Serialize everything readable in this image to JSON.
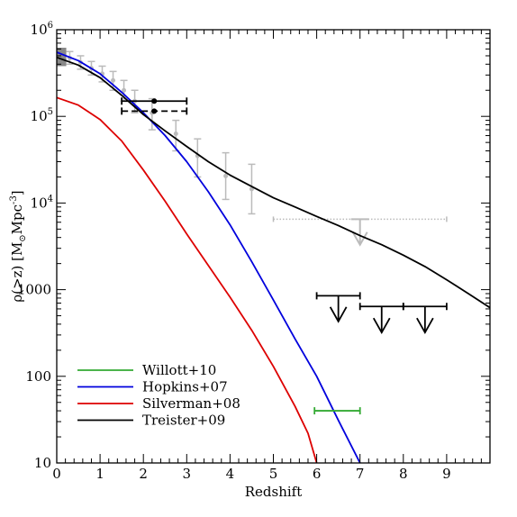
{
  "chart_data": {
    "type": "line",
    "xlabel": "Redshift",
    "ylabel": {
      "prefix": "ρ(>z)  [M",
      "sun_symbol": "⊙",
      "middle": "Mpc",
      "exponent": "-3",
      "suffix": "]"
    },
    "xlim": [
      0,
      10
    ],
    "ylim": [
      10,
      1000000
    ],
    "y_scale": "log",
    "x_ticks": [
      {
        "value": 0,
        "label": "0"
      },
      {
        "value": 1,
        "label": "1"
      },
      {
        "value": 2,
        "label": "2"
      },
      {
        "value": 3,
        "label": "3"
      },
      {
        "value": 4,
        "label": "4"
      },
      {
        "value": 5,
        "label": "5"
      },
      {
        "value": 6,
        "label": "6"
      },
      {
        "value": 7,
        "label": "7"
      },
      {
        "value": 8,
        "label": "8"
      },
      {
        "value": 9,
        "label": "9"
      }
    ],
    "y_ticks": [
      {
        "value": 10,
        "label": "10",
        "exp": ""
      },
      {
        "value": 100,
        "label": "100",
        "exp": ""
      },
      {
        "value": 1000,
        "label": "1000",
        "exp": ""
      },
      {
        "value": 10000,
        "label": "10",
        "exp": "4"
      },
      {
        "value": 100000,
        "label": "10",
        "exp": "5"
      },
      {
        "value": 1000000,
        "label": "10",
        "exp": "6"
      }
    ],
    "grid": false,
    "legend_position": "bottom-left",
    "series": [
      {
        "name": "Willott+10",
        "color": "#33aa33",
        "kind": "segment",
        "x": [
          5.95,
          7.0
        ],
        "y": [
          40,
          40
        ]
      },
      {
        "name": "Hopkins+07",
        "color": "#0000dd",
        "kind": "line",
        "x": [
          0,
          0.5,
          1,
          1.5,
          2,
          2.5,
          3,
          3.5,
          4,
          4.5,
          5,
          5.5,
          6,
          6.5,
          7.0
        ],
        "y": [
          550000,
          440000,
          310000,
          190000,
          110000,
          60000,
          30000,
          13500,
          5600,
          2100,
          760,
          270,
          100,
          31,
          10
        ]
      },
      {
        "name": "Silverman+08",
        "color": "#dd0000",
        "kind": "line",
        "x": [
          0,
          0.5,
          1,
          1.5,
          2,
          2.5,
          3,
          3.5,
          4,
          4.5,
          5,
          5.5,
          5.8,
          6.0
        ],
        "y": [
          165000,
          135000,
          92000,
          52000,
          24000,
          10500,
          4400,
          1900,
          820,
          340,
          130,
          45,
          22,
          10
        ]
      },
      {
        "name": "Treister+09",
        "color": "#000000",
        "kind": "line",
        "x": [
          0,
          0.5,
          1,
          1.5,
          2,
          2.5,
          3,
          3.5,
          4,
          4.5,
          5,
          5.5,
          6,
          6.5,
          7,
          7.5,
          8,
          8.5,
          9,
          9.5,
          10
        ],
        "y": [
          480000,
          390000,
          280000,
          175000,
          105000,
          68000,
          45000,
          30000,
          21000,
          15500,
          11500,
          9000,
          7000,
          5500,
          4200,
          3300,
          2500,
          1850,
          1300,
          900,
          620
        ]
      }
    ],
    "gray_points": {
      "color": "#bbbbbb",
      "points": [
        {
          "x": 0.3,
          "y": 470000,
          "ylo": 400000,
          "yhi": 560000
        },
        {
          "x": 0.55,
          "y": 420000,
          "ylo": 350000,
          "yhi": 500000
        },
        {
          "x": 0.8,
          "y": 360000,
          "ylo": 300000,
          "yhi": 430000
        },
        {
          "x": 1.05,
          "y": 310000,
          "ylo": 250000,
          "yhi": 380000
        },
        {
          "x": 1.3,
          "y": 260000,
          "ylo": 200000,
          "yhi": 330000
        },
        {
          "x": 1.55,
          "y": 200000,
          "ylo": 150000,
          "yhi": 260000
        },
        {
          "x": 1.8,
          "y": 150000,
          "ylo": 110000,
          "yhi": 200000
        },
        {
          "x": 2.2,
          "y": 110000,
          "ylo": 70000,
          "yhi": 160000
        },
        {
          "x": 2.75,
          "y": 63000,
          "ylo": 40000,
          "yhi": 90000
        },
        {
          "x": 3.25,
          "y": 35000,
          "ylo": 20000,
          "yhi": 55000
        },
        {
          "x": 3.9,
          "y": 20500,
          "ylo": 11000,
          "yhi": 38000
        },
        {
          "x": 4.5,
          "y": 14500,
          "ylo": 7500,
          "yhi": 28000
        }
      ],
      "box": {
        "x0": 0.0,
        "x1": 0.22,
        "y0": 380000,
        "y1": 620000
      },
      "range": {
        "x0": 5.0,
        "x1": 9.0,
        "y": 6500
      },
      "upper_limit": {
        "x": 7.0,
        "y": 6500,
        "tip": 3300
      }
    },
    "black_points": [
      {
        "x": 2.25,
        "y": 150000,
        "x0": 1.5,
        "x1": 3.0,
        "dashed": false
      },
      {
        "x": 2.25,
        "y": 115000,
        "x0": 1.5,
        "x1": 3.0,
        "dashed": true
      }
    ],
    "upper_limits": [
      {
        "x": 6.5,
        "y": 850,
        "x0": 6.0,
        "x1": 7.0,
        "tip": 430
      },
      {
        "x": 7.5,
        "y": 640,
        "x0": 7.0,
        "x1": 8.0,
        "tip": 320
      },
      {
        "x": 8.5,
        "y": 640,
        "x0": 8.0,
        "x1": 9.0,
        "tip": 320
      }
    ]
  }
}
